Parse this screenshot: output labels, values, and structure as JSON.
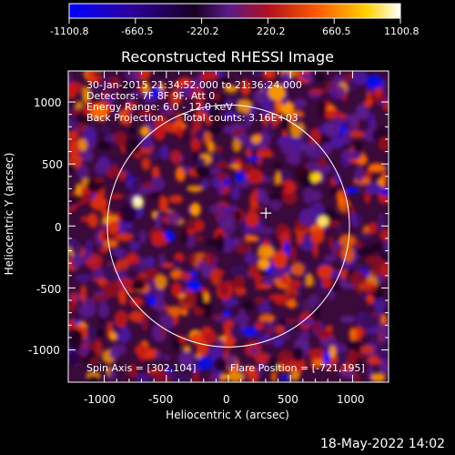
{
  "colorbar": {
    "tick_labels": [
      "-1100.8",
      "-660.5",
      "-220.2",
      "220.2",
      "660.5",
      "1100.8"
    ],
    "colormap": [
      "#0000ff",
      "#2b0066",
      "#000000",
      "#5a1a8a",
      "#c81a1a",
      "#ff6a00",
      "#ffd200",
      "#ffffff"
    ]
  },
  "plot": {
    "title": "Reconstructed RHESSI Image",
    "xlabel": "Heliocentric X (arcsec)",
    "ylabel": "Heliocentric Y (arcsec)",
    "x_ticks": [
      "-1000",
      "-500",
      "0",
      "500",
      "1000"
    ],
    "y_ticks": [
      "1000",
      "500",
      "0",
      "-500",
      "-1000"
    ],
    "xlim": [
      -1290,
      1290
    ],
    "ylim": [
      -1260,
      1250
    ],
    "info": {
      "time_range": "30-Jan-2015 21:34:52.000 to 21:36:24.000",
      "detectors": "Detectors: 7F 8F 9F, Att 0",
      "energy": "Energy Range: 6.0 - 12.0 keV",
      "method": "Back Projection",
      "counts": "Total counts: 3.16E+03"
    },
    "spin_axis": "Spin Axis = [302,104]",
    "flare_position": "Flare Position = [-721,195]",
    "solar_disk_radius_arcsec": 975,
    "marker_position_arcsec": [
      302,
      104
    ]
  },
  "footer": {
    "timestamp": "18-May-2022 14:02"
  }
}
